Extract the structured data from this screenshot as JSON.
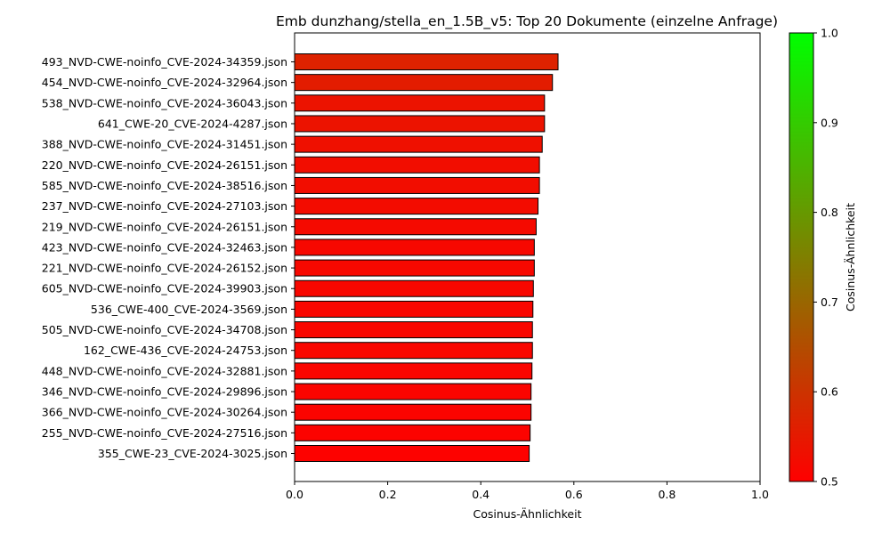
{
  "chart_data": {
    "type": "bar",
    "orientation": "horizontal",
    "title": "Emb dunzhang/stella_en_1.5B_v5: Top 20 Dokumente (einzelne Anfrage)",
    "xlabel": "Cosinus-Ähnlichkeit",
    "ylabel": "",
    "xlim": [
      0,
      1
    ],
    "xticks": [
      "0.0",
      "0.2",
      "0.4",
      "0.6",
      "0.8",
      "1.0"
    ],
    "grid": false,
    "categories": [
      "493_NVD-CWE-noinfo_CVE-2024-34359.json",
      "454_NVD-CWE-noinfo_CVE-2024-32964.json",
      "538_NVD-CWE-noinfo_CVE-2024-36043.json",
      "641_CWE-20_CVE-2024-4287.json",
      "388_NVD-CWE-noinfo_CVE-2024-31451.json",
      "220_NVD-CWE-noinfo_CVE-2024-26151.json",
      "585_NVD-CWE-noinfo_CVE-2024-38516.json",
      "237_NVD-CWE-noinfo_CVE-2024-27103.json",
      "219_NVD-CWE-noinfo_CVE-2024-26151.json",
      "423_NVD-CWE-noinfo_CVE-2024-32463.json",
      "221_NVD-CWE-noinfo_CVE-2024-26152.json",
      "605_NVD-CWE-noinfo_CVE-2024-39903.json",
      "536_CWE-400_CVE-2024-3569.json",
      "505_NVD-CWE-noinfo_CVE-2024-34708.json",
      "162_CWE-436_CVE-2024-24753.json",
      "448_NVD-CWE-noinfo_CVE-2024-32881.json",
      "346_NVD-CWE-noinfo_CVE-2024-29896.json",
      "366_NVD-CWE-noinfo_CVE-2024-30264.json",
      "255_NVD-CWE-noinfo_CVE-2024-27516.json",
      "355_CWE-23_CVE-2024-3025.json"
    ],
    "values": [
      0.566,
      0.554,
      0.537,
      0.537,
      0.532,
      0.526,
      0.526,
      0.523,
      0.519,
      0.515,
      0.515,
      0.513,
      0.512,
      0.511,
      0.511,
      0.51,
      0.508,
      0.508,
      0.506,
      0.504
    ],
    "colorbar": {
      "label": "Cosinus-Ähnlichkeit",
      "range": [
        0.5,
        1.0
      ],
      "ticks": [
        "0.5",
        "0.6",
        "0.7",
        "0.8",
        "0.9",
        "1.0"
      ],
      "low_color": "#ff0000",
      "high_color": "#00ff00"
    },
    "bar_edge_color": "#000000"
  }
}
